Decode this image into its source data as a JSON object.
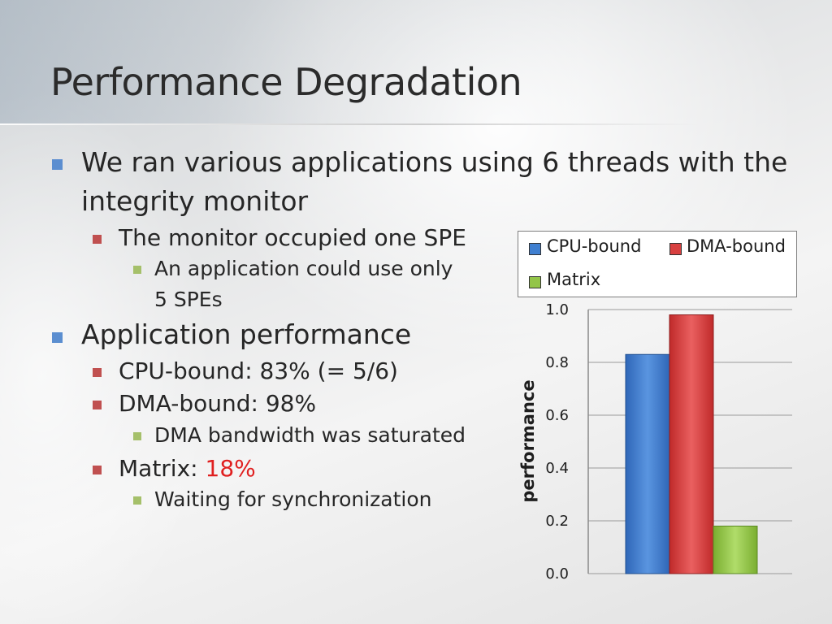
{
  "slide": {
    "title": "Performance Degradation"
  },
  "bullets": {
    "b1": "We ran various applications using 6 threads with the",
    "b1_cont": "integrity monitor",
    "b1_1": "The monitor occupied one SPE",
    "b1_1_1": "An application could use only",
    "b1_1_1_cont": "5 SPEs",
    "b2": "Application performance",
    "b2_1": "CPU-bound: 83% (= 5/6)",
    "b2_2": "DMA-bound: 98%",
    "b2_2_1": "DMA bandwidth was saturated",
    "b2_3_prefix": "Matrix: ",
    "b2_3_value": "18%",
    "b2_3_1": "Waiting for synchronization"
  },
  "colors": {
    "cpu": "#3f7fd0",
    "dma": "#d84040",
    "matrix": "#93c548",
    "highlight": "#e02020"
  },
  "chart_data": {
    "type": "bar",
    "title": "",
    "xlabel": "",
    "ylabel": "performance",
    "ylim": [
      0.0,
      1.0
    ],
    "yticks": [
      "0.0",
      "0.2",
      "0.4",
      "0.6",
      "0.8",
      "1.0"
    ],
    "ytick_values": [
      0.0,
      0.2,
      0.4,
      0.6,
      0.8,
      1.0
    ],
    "grid": true,
    "legend_position": "top",
    "series": [
      {
        "name": "CPU-bound",
        "values": [
          0.83
        ]
      },
      {
        "name": "DMA-bound",
        "values": [
          0.98
        ]
      },
      {
        "name": "Matrix",
        "values": [
          0.18
        ]
      }
    ]
  }
}
